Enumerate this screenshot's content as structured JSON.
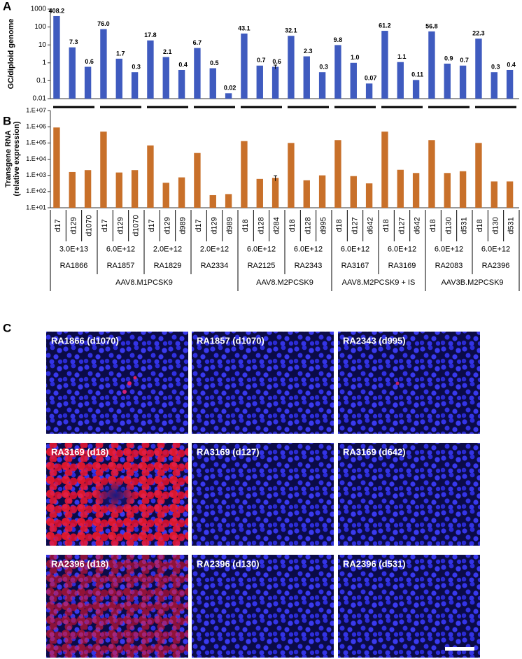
{
  "chart_data": [
    {
      "type": "bar",
      "panel_label": "A",
      "ylabel": "GC/diploid genome",
      "log_scale": true,
      "color": "#3f5bbf",
      "ylim": [
        0.01,
        1000
      ],
      "yticks": [
        0.01,
        0.1,
        1,
        10,
        100,
        1000
      ],
      "values": [
        408.2,
        7.3,
        0.6,
        76.0,
        1.7,
        0.3,
        17.8,
        2.1,
        0.4,
        6.7,
        0.5,
        0.02,
        43.1,
        0.7,
        0.6,
        32.1,
        2.3,
        0.3,
        9.8,
        1.0,
        0.07,
        61.2,
        1.1,
        0.11,
        56.8,
        0.9,
        0.7,
        22.3,
        0.3,
        0.4
      ],
      "value_labels": [
        "408.2",
        "7.3",
        "0.6",
        "76.0",
        "1.7",
        "0.3",
        "17.8",
        "2.1",
        "0.4",
        "6.7",
        "0.5",
        "0.02",
        "43.1",
        "0.7",
        "0.6",
        "32.1",
        "2.3",
        "0.3",
        "9.8",
        "1.0",
        "0.07",
        "61.2",
        "1.1",
        "0.11",
        "56.8",
        "0.9",
        "0.7",
        "22.3",
        "0.3",
        "0.4"
      ],
      "errors": [
        null,
        null,
        null,
        null,
        null,
        null,
        null,
        null,
        null,
        null,
        null,
        null,
        null,
        null,
        0.15,
        null,
        null,
        null,
        null,
        null,
        null,
        null,
        null,
        null,
        null,
        null,
        null,
        null,
        null,
        null
      ]
    },
    {
      "type": "bar",
      "panel_label": "B",
      "ylabel": [
        "Transgene RNA",
        "(relative expression)"
      ],
      "log_scale": true,
      "color": "#c8702a",
      "ylim": [
        10,
        10000000
      ],
      "yticks": [
        {
          "value": 10,
          "label": "1.E+01"
        },
        {
          "value": 100,
          "label": "1.E+02"
        },
        {
          "value": 1000,
          "label": "1.E+03"
        },
        {
          "value": 10000,
          "label": "1.E+04"
        },
        {
          "value": 100000,
          "label": "1.E+05"
        },
        {
          "value": 1000000,
          "label": "1.E+06"
        },
        {
          "value": 10000000,
          "label": "1.E+07"
        }
      ],
      "categories": [
        "d17",
        "d129",
        "d1070",
        "d17",
        "d129",
        "d1070",
        "d17",
        "d129",
        "d989",
        "d17",
        "d129",
        "d989",
        "d18",
        "d128",
        "d284",
        "d18",
        "d128",
        "d995",
        "d18",
        "d127",
        "d642",
        "d18",
        "d127",
        "d642",
        "d18",
        "d130",
        "d531",
        "d18",
        "d130",
        "d531"
      ],
      "values": [
        900000,
        1600,
        2100,
        500000,
        1500,
        2100,
        70000,
        350,
        750,
        24000,
        60,
        70,
        130000,
        600,
        700,
        100000,
        500,
        1000,
        150000,
        900,
        320,
        500000,
        2200,
        1400,
        150000,
        1400,
        1800,
        100000,
        420,
        420
      ],
      "errors": [
        null,
        null,
        null,
        null,
        null,
        null,
        null,
        null,
        null,
        null,
        null,
        null,
        null,
        null,
        250,
        null,
        null,
        null,
        null,
        null,
        null,
        null,
        null,
        null,
        null,
        null,
        null,
        null,
        null,
        null
      ],
      "groups": [
        {
          "label": "AAV8.M1PCSK9",
          "subgroups": [
            {
              "dose": "3.0E+13",
              "animal": "RA1866"
            },
            {
              "dose": "6.0E+12",
              "animal": "RA1857"
            },
            {
              "dose": "2.0E+12",
              "animal": "RA1829"
            },
            {
              "dose": "2.0E+12",
              "animal": "RA2334"
            }
          ]
        },
        {
          "label": "AAV8.M2PCSK9",
          "subgroups": [
            {
              "dose": "6.0E+12",
              "animal": "RA2125"
            },
            {
              "dose": "6.0E+12",
              "animal": "RA2343"
            }
          ]
        },
        {
          "label": "AAV8.M2PCSK9 + IS",
          "subgroups": [
            {
              "dose": "6.0E+12",
              "animal": "RA3167"
            },
            {
              "dose": "6.0E+12",
              "animal": "RA3169"
            }
          ]
        },
        {
          "label": "AAV3B.M2PCSK9",
          "subgroups": [
            {
              "dose": "6.0E+12",
              "animal": "RA2083"
            },
            {
              "dose": "6.0E+12",
              "animal": "RA2396"
            }
          ]
        }
      ]
    }
  ],
  "image_panel": {
    "label": "C",
    "tiles": [
      "RA1866 (d1070)",
      "RA1857 (d1070)",
      "RA2343 (d995)",
      "RA3169 (d18)",
      "RA3169 (d127)",
      "RA3169 (d642)",
      "RA2396 (d18)",
      "RA2396 (d130)",
      "RA2396 (d531)"
    ]
  }
}
